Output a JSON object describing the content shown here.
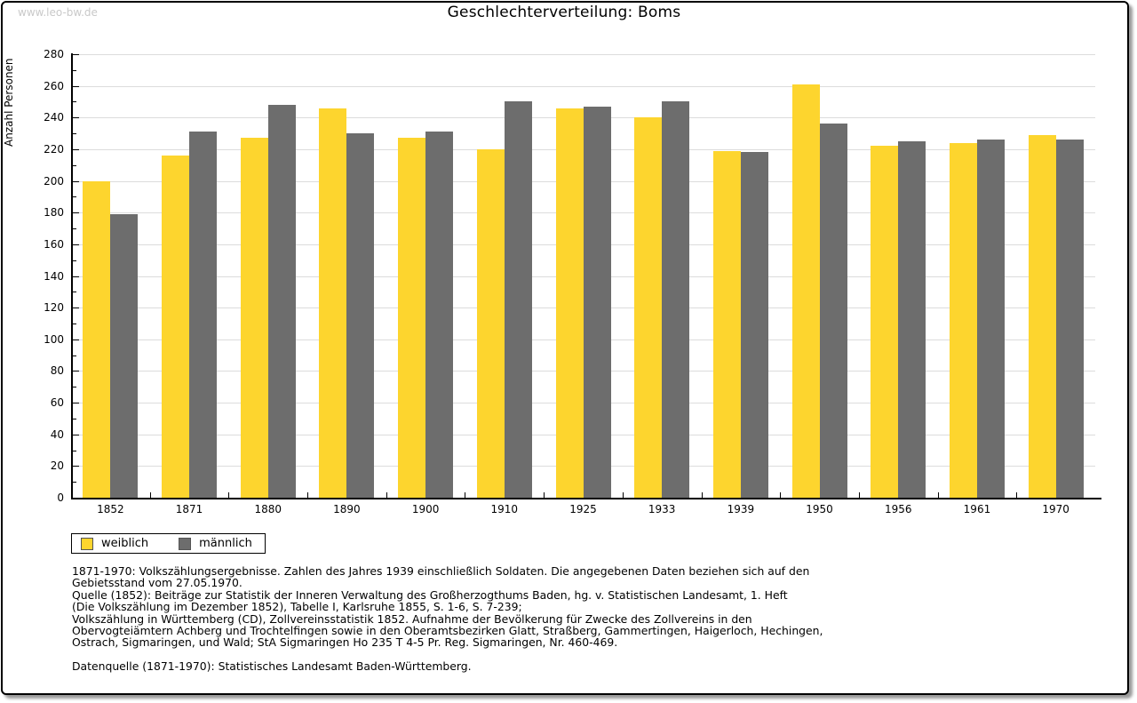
{
  "watermark": "www.leo-bw.de",
  "title": "Geschlechterverteilung: Boms",
  "chart_data": {
    "type": "bar",
    "title": "Geschlechterverteilung: Boms",
    "xlabel": "",
    "ylabel": "Anzahl Personen",
    "ylim": [
      0,
      280
    ],
    "ytick_step": 20,
    "minor_tick_step": 10,
    "grid": true,
    "legend_position": "bottom-left",
    "categories": [
      "1852",
      "1871",
      "1880",
      "1890",
      "1900",
      "1910",
      "1925",
      "1933",
      "1939",
      "1950",
      "1956",
      "1961",
      "1970"
    ],
    "series": [
      {
        "name": "weiblich",
        "color": "#FDD52E",
        "values": [
          200,
          216,
          227,
          246,
          227,
          220,
          246,
          240,
          219,
          261,
          222,
          224,
          229
        ]
      },
      {
        "name": "männlich",
        "color": "#6D6D6D",
        "values": [
          179,
          231,
          248,
          230,
          231,
          250,
          247,
          250,
          218,
          236,
          225,
          226,
          226
        ]
      }
    ]
  },
  "legend": {
    "items": [
      {
        "label": "weiblich",
        "color": "#FDD52E"
      },
      {
        "label": "männlich",
        "color": "#6D6D6D"
      }
    ]
  },
  "footnote_lines": [
    "1871-1970: Volkszählungsergebnisse. Zahlen des Jahres 1939 einschließlich Soldaten. Die angegebenen Daten beziehen sich auf den",
    "Gebietsstand vom 27.05.1970.",
    "Quelle (1852): Beiträge zur Statistik der Inneren Verwaltung des Großherzogthums Baden, hg. v. Statistischen Landesamt, 1. Heft",
    "(Die Volkszählung im Dezember 1852), Tabelle I, Karlsruhe 1855, S. 1-6, S. 7-239;",
    "Volkszählung in Württemberg (CD), Zollvereinsstatistik 1852. Aufnahme der Bevölkerung für Zwecke des Zollvereins in den",
    "Obervogteiämtern Achberg und Trochtelfingen sowie in den Oberamtsbezirken Glatt, Straßberg, Gammertingen, Haigerloch, Hechingen,",
    "Ostrach, Sigmaringen, und Wald; StA Sigmaringen Ho 235 T 4-5 Pr. Reg. Sigmaringen, Nr. 460-469."
  ],
  "datasource": "Datenquelle (1871-1970): Statistisches Landesamt Baden-Württemberg.",
  "colors": {
    "female": "#FDD52E",
    "male": "#6D6D6D",
    "gridline": "#dcdcdc",
    "watermark": "#c9c9c9",
    "axis": "#000000"
  }
}
